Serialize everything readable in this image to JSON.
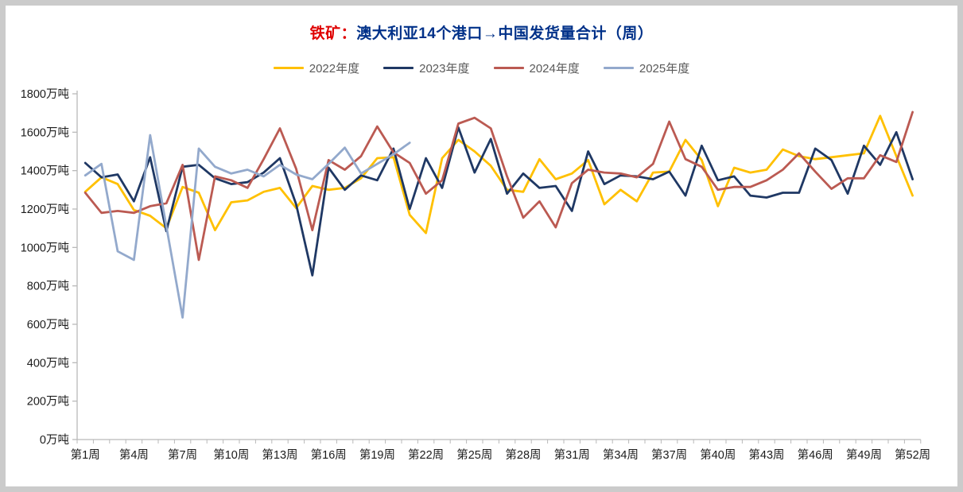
{
  "title": {
    "prefix": "铁矿：",
    "main": "澳大利亚14个港口→中国发货量合计（周）"
  },
  "legend": {
    "items": [
      {
        "label": "2022年度",
        "color": "#FFC000"
      },
      {
        "label": "2023年度",
        "color": "#1F3864"
      },
      {
        "label": "2024年度",
        "color": "#BB5A52"
      },
      {
        "label": "2025年度",
        "color": "#93A9CC"
      }
    ]
  },
  "chart_data": {
    "type": "line",
    "title": "铁矿：澳大利亚14个港口→中国发货量合计（周）",
    "xlabel": "",
    "ylabel": "万吨",
    "x_unit": "周",
    "weeks": 52,
    "x_tick_step": 3,
    "x_tick_labels": [
      "第1周",
      "第4周",
      "第7周",
      "第10周",
      "第13周",
      "第16周",
      "第19周",
      "第22周",
      "第25周",
      "第28周",
      "第31周",
      "第34周",
      "第37周",
      "第40周",
      "第43周",
      "第46周",
      "第49周",
      "第52周"
    ],
    "y_tick_labels": [
      "0万吨",
      "200万吨",
      "400万吨",
      "600万吨",
      "800万吨",
      "1000万吨",
      "1200万吨",
      "1400万吨",
      "1600万吨",
      "1800万吨"
    ],
    "ylim": [
      0,
      1800
    ],
    "y_step": 200,
    "grid": false,
    "legend_position": "top",
    "series": [
      {
        "name": "2022年度",
        "color": "#FFC000",
        "values": [
          1290,
          1365,
          1330,
          1195,
          1165,
          1100,
          1315,
          1285,
          1090,
          1235,
          1245,
          1290,
          1310,
          1205,
          1320,
          1300,
          1310,
          1360,
          1465,
          1470,
          1170,
          1075,
          1465,
          1560,
          1500,
          1425,
          1300,
          1290,
          1460,
          1355,
          1385,
          1455,
          1225,
          1300,
          1240,
          1390,
          1395,
          1560,
          1455,
          1215,
          1415,
          1390,
          1405,
          1510,
          1475,
          1460,
          1470,
          1480,
          1490,
          1685,
          1475,
          1270
        ]
      },
      {
        "name": "2023年度",
        "color": "#1F3864",
        "values": [
          1440,
          1365,
          1380,
          1240,
          1470,
          1085,
          1420,
          1430,
          1360,
          1330,
          1340,
          1390,
          1465,
          1225,
          855,
          1415,
          1300,
          1375,
          1350,
          1515,
          1200,
          1465,
          1310,
          1625,
          1390,
          1565,
          1280,
          1385,
          1310,
          1320,
          1190,
          1500,
          1330,
          1375,
          1370,
          1355,
          1395,
          1270,
          1530,
          1350,
          1370,
          1270,
          1260,
          1285,
          1285,
          1515,
          1455,
          1280,
          1530,
          1430,
          1600,
          1355
        ]
      },
      {
        "name": "2024年度",
        "color": "#BB5A52",
        "values": [
          1285,
          1180,
          1190,
          1180,
          1215,
          1230,
          1430,
          935,
          1370,
          1350,
          1310,
          1460,
          1620,
          1410,
          1090,
          1455,
          1405,
          1475,
          1630,
          1495,
          1440,
          1280,
          1350,
          1645,
          1675,
          1620,
          1370,
          1155,
          1240,
          1105,
          1335,
          1405,
          1390,
          1385,
          1365,
          1435,
          1655,
          1460,
          1420,
          1300,
          1315,
          1315,
          1350,
          1405,
          1490,
          1395,
          1305,
          1360,
          1360,
          1480,
          1445,
          1705
        ]
      },
      {
        "name": "2025年度",
        "color": "#93A9CC",
        "values": [
          1375,
          1435,
          980,
          935,
          1585,
          1110,
          635,
          1515,
          1420,
          1385,
          1405,
          1370,
          1430,
          1380,
          1355,
          1435,
          1520,
          1385,
          1435,
          1485,
          1545
        ]
      }
    ]
  }
}
